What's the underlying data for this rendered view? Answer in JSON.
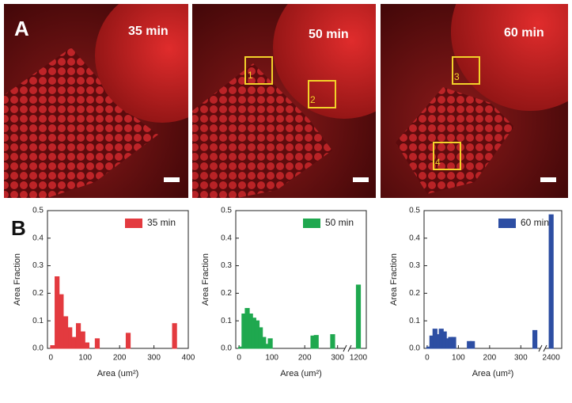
{
  "panel_a": {
    "label": "A",
    "images": [
      {
        "time": "35 min",
        "boxes": []
      },
      {
        "time": "50 min",
        "boxes": [
          "1",
          "2"
        ]
      },
      {
        "time": "60 min",
        "boxes": [
          "3",
          "4"
        ]
      }
    ]
  },
  "panel_b": {
    "label": "B"
  },
  "chart_data": [
    {
      "type": "bar",
      "xlabel": "Area (um²)",
      "ylabel": "Area Fraction",
      "legend": "upper right",
      "x": [
        5,
        18,
        30,
        43,
        55,
        68,
        80,
        93,
        105,
        135,
        225,
        360
      ],
      "series": [
        {
          "name": "35 min",
          "color": "#e33a3f",
          "values": [
            0.01,
            0.26,
            0.195,
            0.115,
            0.075,
            0.04,
            0.09,
            0.06,
            0.02,
            0.035,
            0.055,
            0.09
          ]
        }
      ],
      "xlim": [
        -10,
        400
      ],
      "xticks": [
        0,
        100,
        200,
        300,
        400
      ],
      "ylim": [
        0,
        0.5
      ],
      "yticks": [
        {
          "value": 0,
          "label": "0.0"
        },
        0.1,
        0.2,
        0.3,
        0.4,
        0.5
      ]
    },
    {
      "type": "bar",
      "xlabel": "Area (um²)",
      "ylabel": "Area Fraction",
      "legend": "upper right",
      "x": [
        5,
        15,
        25,
        35,
        45,
        55,
        65,
        75,
        85,
        95,
        225,
        235,
        285,
        1200
      ],
      "series": [
        {
          "name": "50 min",
          "color": "#1fa84f",
          "values": [
            0.005,
            0.125,
            0.145,
            0.125,
            0.11,
            0.1,
            0.075,
            0.04,
            0.015,
            0.035,
            0.045,
            0.047,
            0.05,
            0.23
          ]
        }
      ],
      "xlim": [
        -10,
        1210
      ],
      "xbreak": [
        320,
        1190
      ],
      "xticks": [
        0,
        100,
        200,
        300,
        1200
      ],
      "ylim": [
        0,
        0.5
      ],
      "yticks": [
        {
          "value": 0,
          "label": "0.0"
        },
        0.1,
        0.2,
        0.3,
        0.4,
        0.5
      ]
    },
    {
      "type": "bar",
      "xlabel": "Area (um²)",
      "ylabel": "Area Fraction",
      "legend": "upper right",
      "x": [
        5,
        15,
        25,
        35,
        45,
        55,
        65,
        75,
        85,
        135,
        145,
        345,
        2400
      ],
      "series": [
        {
          "name": "60 min",
          "color": "#2d4ea3",
          "values": [
            0.005,
            0.045,
            0.07,
            0.05,
            0.07,
            0.06,
            0.035,
            0.04,
            0.04,
            0.025,
            0.025,
            0.065,
            0.485
          ]
        }
      ],
      "xlim": [
        -10,
        2420
      ],
      "xbreak": [
        360,
        2390
      ],
      "xticks": [
        0,
        100,
        200,
        300,
        2400
      ],
      "ylim": [
        0,
        0.5
      ],
      "yticks": [
        {
          "value": 0,
          "label": "0.0"
        },
        0.1,
        0.2,
        0.3,
        0.4,
        0.5
      ]
    }
  ]
}
